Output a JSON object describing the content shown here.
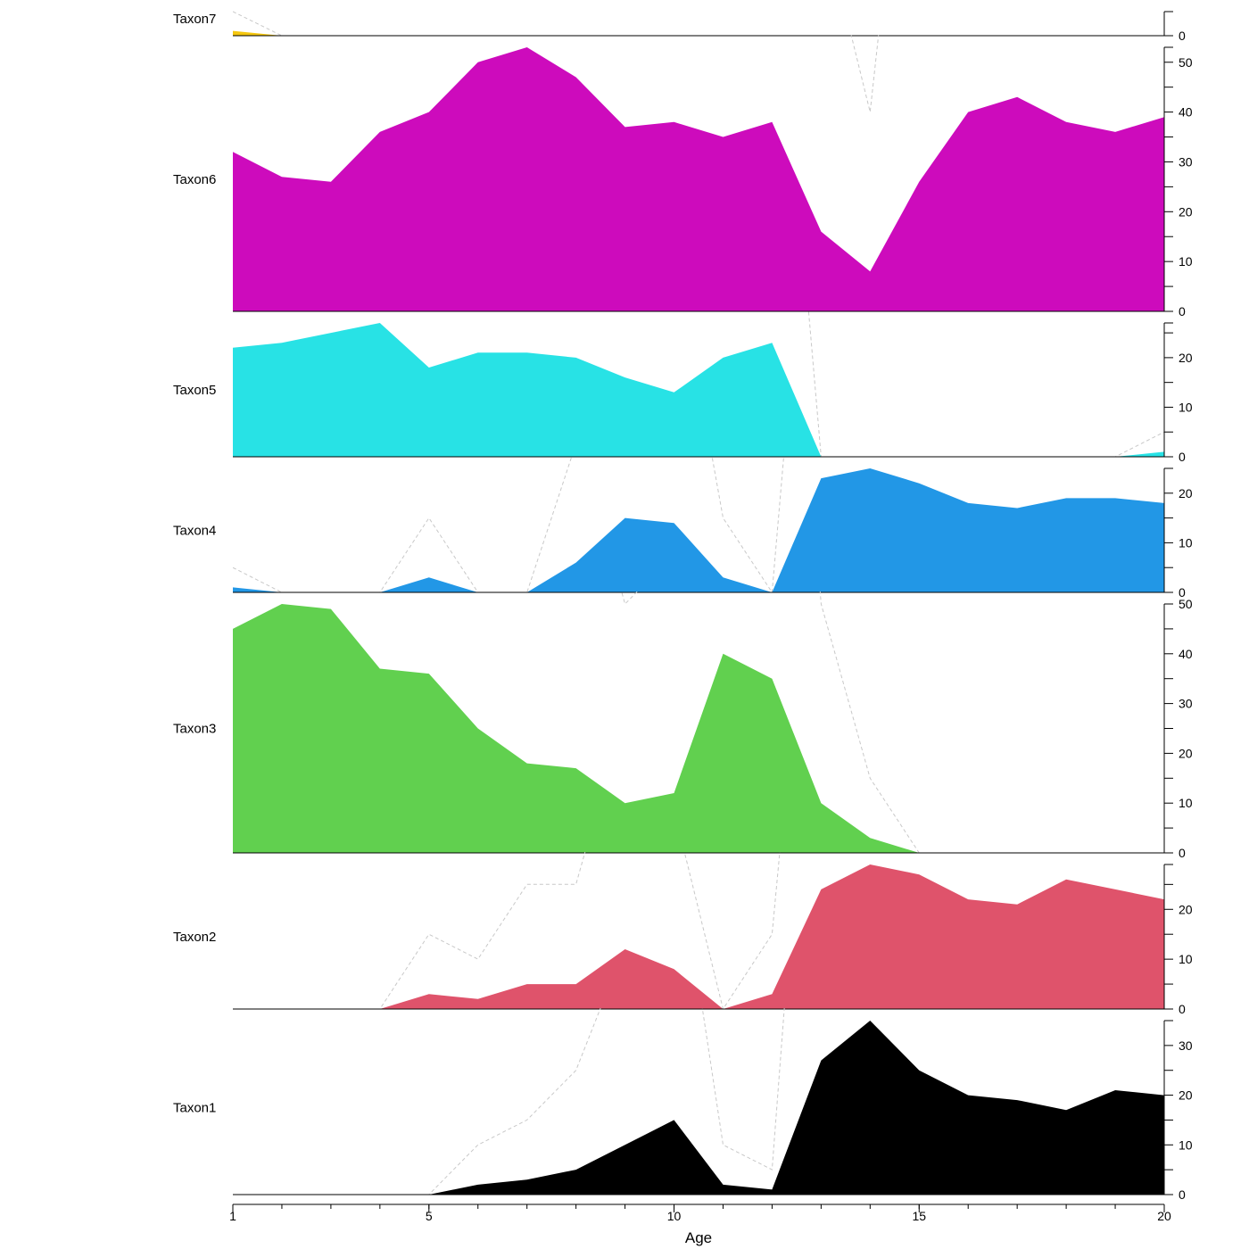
{
  "chart_data": {
    "type": "area",
    "xlabel": "Age",
    "x_ticks": [
      1,
      5,
      10,
      15,
      20
    ],
    "xlim": [
      1,
      20
    ],
    "x": [
      1,
      2,
      3,
      4,
      5,
      6,
      7,
      8,
      9,
      10,
      11,
      12,
      13,
      14,
      15,
      16,
      17,
      18,
      19,
      20
    ],
    "exaggeration_line": "dashed gray 5x exaggeration curve per panel",
    "series": [
      {
        "name": "Taxon7",
        "color": "#F5C710",
        "ylim": [
          0,
          5
        ],
        "y_ticks": [
          0
        ],
        "values": [
          1,
          0,
          0,
          0,
          0,
          0,
          0,
          0,
          0,
          0,
          0,
          0,
          0,
          0,
          0,
          0,
          0,
          0,
          0,
          0
        ]
      },
      {
        "name": "Taxon6",
        "color": "#CD0BBC",
        "ylim": [
          0,
          53
        ],
        "y_ticks": [
          0,
          10,
          20,
          30,
          40,
          50
        ],
        "values": [
          32,
          27,
          26,
          36,
          40,
          50,
          53,
          47,
          37,
          38,
          35,
          38,
          16,
          8,
          26,
          40,
          43,
          38,
          36,
          39
        ]
      },
      {
        "name": "Taxon5",
        "color": "#28E2E5",
        "ylim": [
          0,
          27
        ],
        "y_ticks": [
          0,
          10,
          20
        ],
        "values": [
          22,
          23,
          25,
          27,
          18,
          21,
          21,
          20,
          16,
          13,
          20,
          23,
          0,
          0,
          0,
          0,
          0,
          0,
          0,
          1
        ]
      },
      {
        "name": "Taxon4",
        "color": "#2297E6",
        "ylim": [
          0,
          25
        ],
        "y_ticks": [
          0,
          10,
          20
        ],
        "values": [
          1,
          0,
          0,
          0,
          3,
          0,
          0,
          6,
          15,
          14,
          3,
          0,
          23,
          25,
          22,
          18,
          17,
          19,
          19,
          18
        ]
      },
      {
        "name": "Taxon3",
        "color": "#61D04F",
        "ylim": [
          0,
          50
        ],
        "y_ticks": [
          0,
          10,
          20,
          30,
          40,
          50
        ],
        "values": [
          45,
          50,
          49,
          37,
          36,
          25,
          18,
          17,
          10,
          12,
          40,
          35,
          10,
          3,
          0,
          0,
          0,
          0,
          0,
          0
        ]
      },
      {
        "name": "Taxon2",
        "color": "#DF536B",
        "ylim": [
          0,
          29
        ],
        "y_ticks": [
          0,
          10,
          20
        ],
        "values": [
          0,
          0,
          0,
          0,
          3,
          2,
          5,
          5,
          12,
          8,
          0,
          3,
          24,
          29,
          27,
          22,
          21,
          26,
          24,
          22
        ]
      },
      {
        "name": "Taxon1",
        "color": "#000000",
        "ylim": [
          0,
          35
        ],
        "y_ticks": [
          0,
          10,
          20,
          30
        ],
        "values": [
          0,
          0,
          0,
          0,
          0,
          2,
          3,
          5,
          10,
          15,
          2,
          1,
          27,
          35,
          25,
          20,
          19,
          17,
          21,
          20
        ]
      }
    ]
  }
}
